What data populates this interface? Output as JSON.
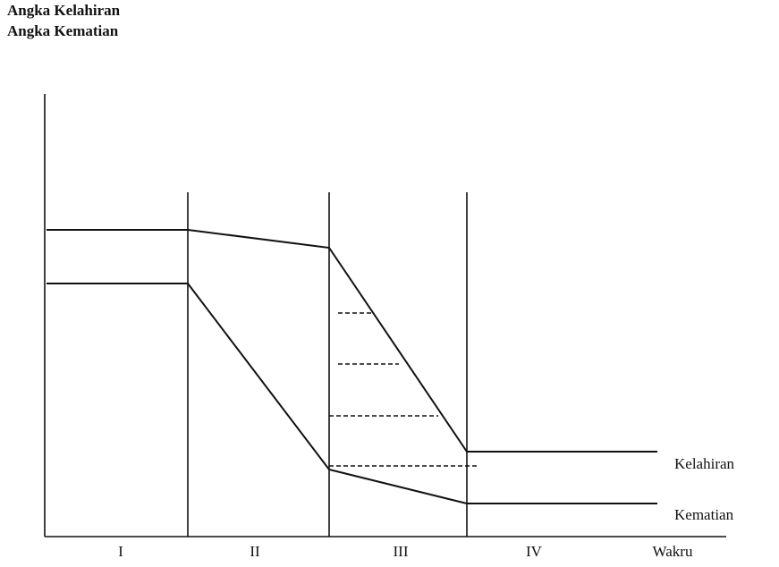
{
  "header": {
    "lines": [
      "Angka Kelahiran",
      "Angka Kematian"
    ]
  },
  "stages": [
    "I",
    "II",
    "III",
    "IV"
  ],
  "x_axis_label": "Wakru",
  "series_labels": [
    "Kelahiran",
    "Kematian"
  ]
}
